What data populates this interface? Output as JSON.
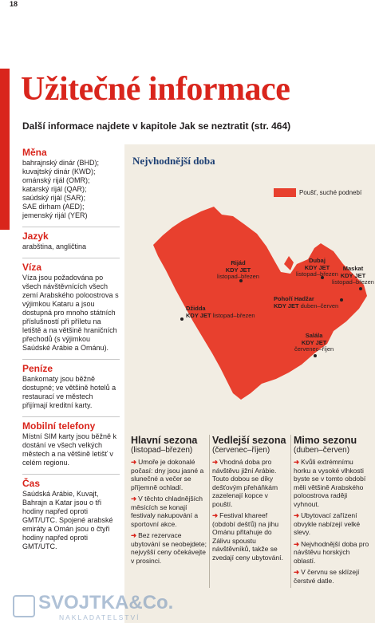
{
  "page_number": "18",
  "title": "Užitečné informace",
  "subtitle": "Další informace najdete v kapitole Jak se neztratit (str. 464)",
  "sidebar": {
    "mena": {
      "heading": "Měna",
      "lines": [
        "bahrajnský dinár (BHD);",
        "kuvajtský dinár (KWD);",
        "ománský rijál (OMR);",
        "katarský rijál (QAR);",
        "saúdský rijál (SAR);",
        "SAE dirham (AED);",
        "jemenský rijál (YER)"
      ]
    },
    "jazyk": {
      "heading": "Jazyk",
      "text": "arabština, angličtina"
    },
    "viza": {
      "heading": "Víza",
      "text": "Víza jsou požadována po všech návštěvnících všech zemí Arabského poloostrova s výjimkou Kataru a jsou dostupná pro mnoho státních příslušností při příletu na letiště a na většině hraničních přechodů (s výjimkou Saúdské Arábie a Ománu)."
    },
    "penize": {
      "heading": "Peníze",
      "text": "Bankomaty jsou běžně dostupné; ve většině hotelů a restaurací ve městech přijímají kreditní karty."
    },
    "telefony": {
      "heading": "Mobilní telefony",
      "text": "Místní SIM karty jsou běžně k dostání ve všech velkých městech a na většině letišť v celém regionu."
    },
    "cas": {
      "heading": "Čas",
      "text": "Saúdská Arábie, Kuvajt, Bahrajn a Katar jsou o tři hodiny napřed oproti GMT/UTC. Spojené arabské emiráty a Omán jsou o čtyři hodiny napřed oproti GMT/UTC."
    }
  },
  "map": {
    "title": "Nejvhodnější doba",
    "legend": "Poušť, suché podnebí",
    "colors": {
      "desert": "#e8402e",
      "accent": "#d9251c",
      "background": "#f2ede3"
    },
    "cities": [
      {
        "name": "Rijád",
        "kdy": "KDY JET",
        "period": "listopad–březen"
      },
      {
        "name": "Dubaj",
        "kdy": "KDY JET",
        "period": "listopad–březen"
      },
      {
        "name": "Maskat",
        "kdy": "KDY JET",
        "period": "listopad–březen"
      },
      {
        "name": "Pohoří Hadžar",
        "kdy": "KDY JET",
        "period": "duben–červen"
      },
      {
        "name": "Džidda",
        "kdy": "KDY JET",
        "period": "listopad–březen"
      },
      {
        "name": "Salála",
        "kdy": "KDY JET",
        "period": "červenec–říjen"
      }
    ]
  },
  "seasons": [
    {
      "title": "Hlavní sezona",
      "sub": "(listopad–březen)",
      "bullets": [
        "Umoře je dokonalé počasí: dny jsou jasné a slunečné a večer se příjemně ochladí.",
        "V těchto chladnějších měsících se konají festivaly nakupování a sportovní akce.",
        "Bez rezervace ubytování se neobejdete; nejvyšší ceny očekávejte v prosinci."
      ]
    },
    {
      "title": "Vedlejší sezona",
      "sub": "(červenec–říjen)",
      "bullets": [
        "Vhodná doba pro návštěvu jižní Arábie. Touto dobou se díky dešťovým přeháňkám zazelenají kopce v pouští.",
        "Festival khareef (období dešťů) na jihu Ománu přitahuje do Zálivu spoustu návštěvníků, takže se zvedají ceny ubytování."
      ]
    },
    {
      "title": "Mimo sezonu",
      "sub": "(duben–červen)",
      "bullets": [
        "Kvůli extrémnímu horku a vysoké vlhkosti byste se v tomto období měli většině Arabského poloostrova raději vyhnout.",
        "Ubytovací zařízení obvykle nabízejí velké slevy.",
        "Nejvhodnější doba pro návštěvu horských oblastí.",
        "V červnu se sklízejí čerstvé datle."
      ]
    }
  ],
  "watermark": {
    "name": "SVOJTKA&Co.",
    "sub": "NAKLADATELSTVÍ"
  }
}
